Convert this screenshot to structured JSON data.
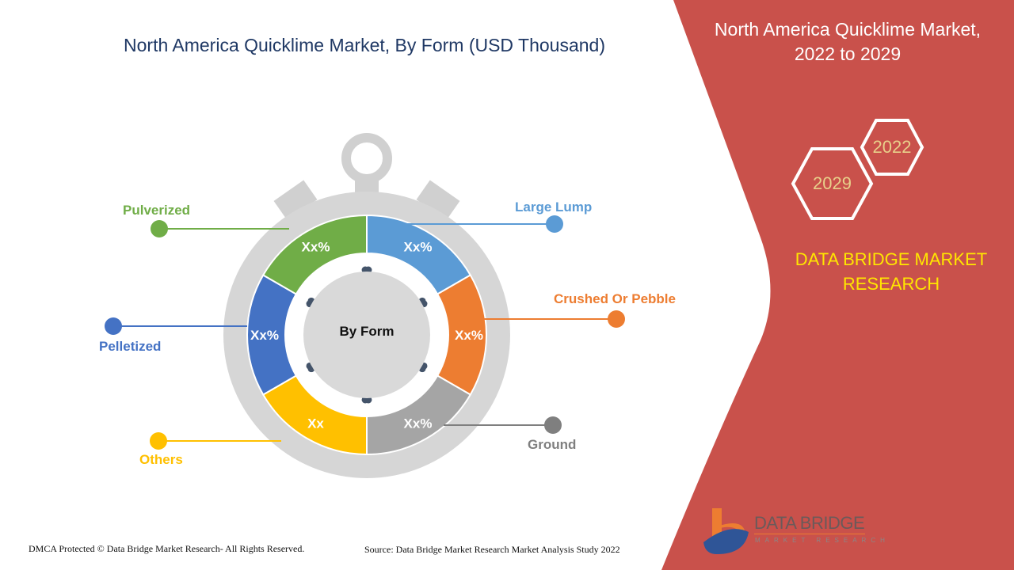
{
  "title": "North America Quicklime Market, By Form (USD Thousand)",
  "side_panel": {
    "title_line1": "North America Quicklime Market,",
    "title_line2": "2022 to 2029",
    "year_a": "2022",
    "year_b": "2029",
    "brand_line1": "DATA BRIDGE MARKET",
    "brand_line2": "RESEARCH",
    "logo_name": "DATA BRIDGE",
    "logo_sub": "MARKET RESEARCH",
    "bg_color": "#c9514b"
  },
  "chart_data": {
    "type": "pie",
    "style": "donut",
    "center_label": "By Form",
    "categories": [
      "Large Lump",
      "Crushed Or Pebble",
      "Ground",
      "Others",
      "Pelletized",
      "Pulverized"
    ],
    "data_labels": [
      "Xx%",
      "Xx%",
      "Xx%",
      "Xx",
      "Xx%",
      "Xx%"
    ],
    "shares_percent": [
      16.67,
      16.67,
      16.67,
      16.67,
      16.67,
      16.67
    ],
    "colors": [
      "#5b9bd5",
      "#ed7d31",
      "#a5a5a5",
      "#ffc000",
      "#4472c4",
      "#70ad47"
    ],
    "legend_colors": [
      "#5b9bd5",
      "#ed7d31",
      "#7f7f7f",
      "#ffc000",
      "#4472c4",
      "#70ad47"
    ]
  },
  "footer": {
    "copyright": "DMCA Protected © Data Bridge Market Research- All Rights Reserved.",
    "source": "Source: Data Bridge Market Research Market Analysis Study 2022"
  }
}
